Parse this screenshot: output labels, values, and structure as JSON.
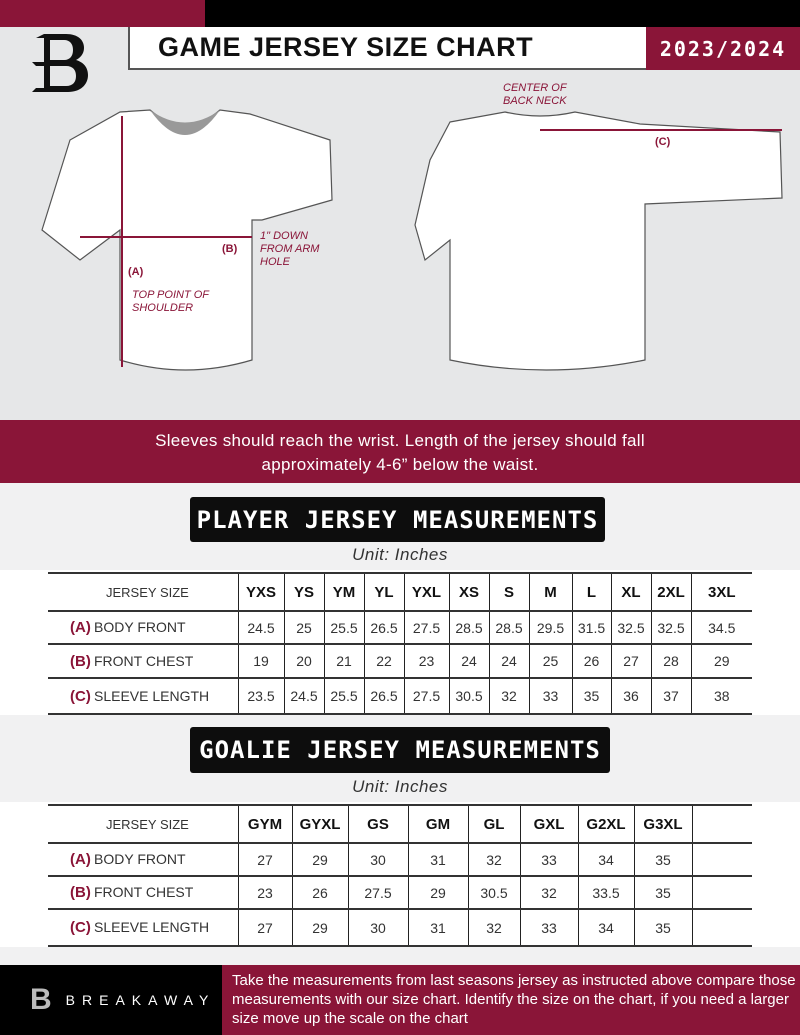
{
  "header": {
    "title": "GAME JERSEY SIZE CHART",
    "season": "2023/2024",
    "logo_letter": "B"
  },
  "diagram": {
    "center_back_neck": "CENTER OF BACK NECK",
    "label_a": "(A)",
    "label_b": "(B)",
    "label_c": "(C)",
    "chest_note": "1\" DOWN FROM ARM HOLE",
    "shoulder_note": "TOP POINT OF SHOULDER"
  },
  "band_text": {
    "line1": "Sleeves should reach the wrist. Length of the jersey should fall",
    "line2": "approximately 4-6” below the waist."
  },
  "player": {
    "title": "PLAYER JERSEY MEASUREMENTS",
    "unit": "Unit: Inches",
    "size_header": "JERSEY SIZE",
    "sizes": [
      "YXS",
      "YS",
      "YM",
      "YL",
      "YXL",
      "XS",
      "S",
      "M",
      "L",
      "XL",
      "2XL",
      "3XL"
    ],
    "rows": [
      {
        "key": "(A)",
        "label": "BODY FRONT",
        "values": [
          "24.5",
          "25",
          "25.5",
          "26.5",
          "27.5",
          "28.5",
          "28.5",
          "29.5",
          "31.5",
          "32.5",
          "32.5",
          "34.5"
        ]
      },
      {
        "key": "(B)",
        "label": "FRONT CHEST",
        "values": [
          "19",
          "20",
          "21",
          "22",
          "23",
          "24",
          "24",
          "25",
          "26",
          "27",
          "28",
          "29"
        ]
      },
      {
        "key": "(C)",
        "label": "SLEEVE LENGTH",
        "values": [
          "23.5",
          "24.5",
          "25.5",
          "26.5",
          "27.5",
          "30.5",
          "32",
          "33",
          "35",
          "36",
          "37",
          "38"
        ]
      }
    ]
  },
  "goalie": {
    "title": "GOALIE JERSEY MEASUREMENTS",
    "unit": "Unit: Inches",
    "size_header": "JERSEY SIZE",
    "sizes": [
      "GYM",
      "GYXL",
      "GS",
      "GM",
      "GL",
      "GXL",
      "G2XL",
      "G3XL"
    ],
    "rows": [
      {
        "key": "(A)",
        "label": "BODY FRONT",
        "values": [
          "27",
          "29",
          "30",
          "31",
          "32",
          "33",
          "34",
          "35"
        ]
      },
      {
        "key": "(B)",
        "label": "FRONT CHEST",
        "values": [
          "23",
          "26",
          "27.5",
          "29",
          "30.5",
          "32",
          "33.5",
          "35"
        ]
      },
      {
        "key": "(C)",
        "label": "SLEEVE LENGTH",
        "values": [
          "27",
          "29",
          "30",
          "31",
          "32",
          "33",
          "34",
          "35"
        ]
      }
    ]
  },
  "footer": {
    "brand": "BREAKAWAY",
    "text": "Take the measurements from last seasons jersey as instructed above compare those measurements  with our size chart. Identify the size on the chart, if you need a larger size move up the scale on the chart"
  },
  "colors": {
    "maroon": "#8a1538",
    "black": "#000000",
    "gray": "#e6e7e8"
  }
}
